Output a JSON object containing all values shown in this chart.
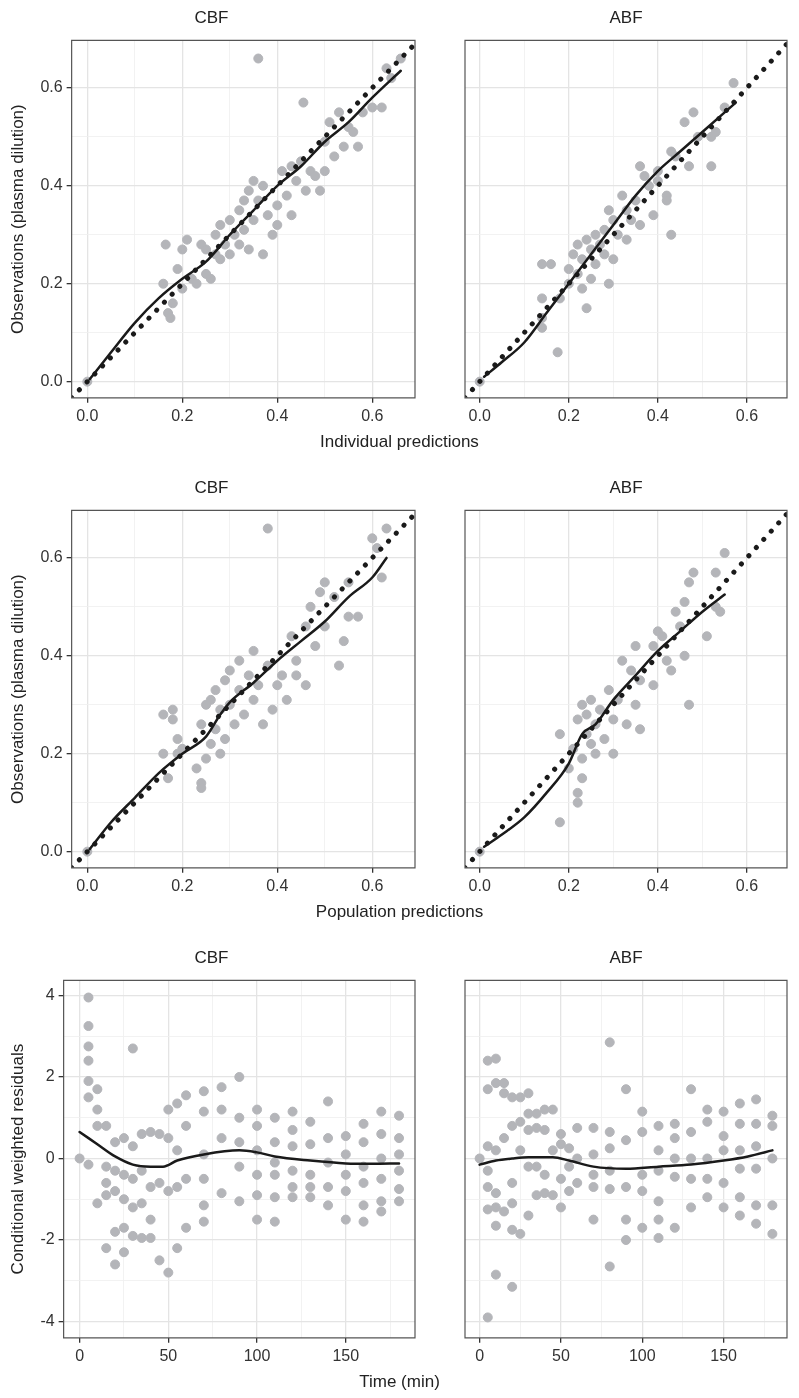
{
  "chart_data": [
    {
      "type": "scatter",
      "title": "CBF",
      "xlabel": "Individual predictions",
      "ylabel": "Observations (plasma dilution)",
      "xlim": [
        -0.033,
        0.69
      ],
      "ylim": [
        -0.033,
        0.697
      ],
      "xticks": [
        {
          "value": 0,
          "label": "0.0"
        },
        {
          "value": 0.1,
          "label": null
        },
        {
          "value": 0.2,
          "label": "0.2"
        },
        {
          "value": 0.3,
          "label": null
        },
        {
          "value": 0.4,
          "label": "0.4"
        },
        {
          "value": 0.5,
          "label": null
        },
        {
          "value": 0.6,
          "label": "0.6"
        }
      ],
      "yticks": [
        {
          "value": 0,
          "label": "0.0"
        },
        {
          "value": 0.1,
          "label": null
        },
        {
          "value": 0.2,
          "label": "0.2"
        },
        {
          "value": 0.3,
          "label": null
        },
        {
          "value": 0.4,
          "label": "0.4"
        },
        {
          "value": 0.5,
          "label": null
        },
        {
          "value": 0.6,
          "label": "0.6"
        }
      ],
      "grid": true,
      "series": [
        {
          "color": "#b4b5b9",
          "marker": "circle",
          "x": [
            0,
            0.16,
            0.165,
            0.17,
            0.175,
            0.18,
            0.19,
            0.2,
            0.2,
            0.21,
            0.22,
            0.23,
            0.24,
            0.25,
            0.25,
            0.26,
            0.27,
            0.27,
            0.28,
            0.28,
            0.29,
            0.3,
            0.3,
            0.31,
            0.32,
            0.32,
            0.33,
            0.33,
            0.34,
            0.34,
            0.35,
            0.35,
            0.36,
            0.36,
            0.37,
            0.37,
            0.38,
            0.39,
            0.4,
            0.4,
            0.41,
            0.42,
            0.43,
            0.43,
            0.44,
            0.45,
            0.455,
            0.46,
            0.47,
            0.48,
            0.49,
            0.5,
            0.5,
            0.51,
            0.52,
            0.53,
            0.54,
            0.55,
            0.56,
            0.57,
            0.58,
            0.6,
            0.62,
            0.63,
            0.64,
            0.66
          ],
          "values": [
            0,
            0.2,
            0.28,
            0.14,
            0.13,
            0.16,
            0.23,
            0.27,
            0.19,
            0.29,
            0.21,
            0.2,
            0.28,
            0.22,
            0.27,
            0.21,
            0.26,
            0.3,
            0.25,
            0.32,
            0.28,
            0.33,
            0.26,
            0.3,
            0.35,
            0.28,
            0.37,
            0.31,
            0.39,
            0.27,
            0.33,
            0.41,
            0.66,
            0.37,
            0.4,
            0.26,
            0.34,
            0.3,
            0.32,
            0.36,
            0.43,
            0.38,
            0.44,
            0.34,
            0.41,
            0.45,
            0.57,
            0.39,
            0.43,
            0.42,
            0.39,
            0.43,
            0.49,
            0.53,
            0.46,
            0.55,
            0.48,
            0.52,
            0.51,
            0.48,
            0.55,
            0.56,
            0.56,
            0.64,
            0.62,
            0.66
          ]
        },
        {
          "type": "line",
          "color": "#1a1a1a",
          "marker": "none",
          "line_style": "solid",
          "x": [
            0.005,
            0.05,
            0.1,
            0.15,
            0.2,
            0.25,
            0.3,
            0.35,
            0.4,
            0.45,
            0.5,
            0.55,
            0.6,
            0.66
          ],
          "values": [
            0.005,
            0.06,
            0.12,
            0.17,
            0.21,
            0.245,
            0.3,
            0.35,
            0.4,
            0.44,
            0.49,
            0.53,
            0.58,
            0.635
          ]
        },
        {
          "type": "line",
          "color": "#1a1a1a",
          "marker": "none",
          "line_style": "dotted",
          "x": [
            -0.033,
            0.69
          ],
          "values": [
            -0.033,
            0.69
          ]
        }
      ]
    },
    {
      "type": "scatter",
      "title": "ABF",
      "xlim": [
        -0.033,
        0.69
      ],
      "ylim": [
        -0.033,
        0.697
      ],
      "xticks": [
        {
          "value": 0,
          "label": "0.0"
        },
        {
          "value": 0.1,
          "label": null
        },
        {
          "value": 0.2,
          "label": "0.2"
        },
        {
          "value": 0.3,
          "label": null
        },
        {
          "value": 0.4,
          "label": "0.4"
        },
        {
          "value": 0.5,
          "label": null
        },
        {
          "value": 0.6,
          "label": "0.6"
        }
      ],
      "yticks": [
        0,
        {
          "value": 0.1,
          "label": null
        },
        0.2,
        {
          "value": 0.3,
          "label": null
        },
        0.4,
        {
          "value": 0.5,
          "label": null
        },
        0.6
      ],
      "grid": true,
      "tick_labels": "x",
      "series": [
        {
          "color": "#b4b5b9",
          "marker": "circle",
          "x": [
            0,
            0.14,
            0.14,
            0.14,
            0.14,
            0.16,
            0.175,
            0.18,
            0.2,
            0.2,
            0.21,
            0.22,
            0.22,
            0.23,
            0.23,
            0.24,
            0.24,
            0.25,
            0.25,
            0.26,
            0.26,
            0.27,
            0.28,
            0.28,
            0.29,
            0.29,
            0.3,
            0.3,
            0.31,
            0.32,
            0.33,
            0.33,
            0.34,
            0.35,
            0.36,
            0.36,
            0.37,
            0.38,
            0.39,
            0.4,
            0.4,
            0.42,
            0.42,
            0.43,
            0.43,
            0.44,
            0.46,
            0.47,
            0.48,
            0.49,
            0.52,
            0.52,
            0.53,
            0.55,
            0.57
          ],
          "values": [
            0,
            0.24,
            0.13,
            0.11,
            0.17,
            0.24,
            0.06,
            0.17,
            0.23,
            0.2,
            0.26,
            0.22,
            0.28,
            0.25,
            0.19,
            0.29,
            0.15,
            0.27,
            0.21,
            0.3,
            0.24,
            0.28,
            0.26,
            0.31,
            0.2,
            0.35,
            0.25,
            0.33,
            0.3,
            0.38,
            0.29,
            0.35,
            0.33,
            0.37,
            0.32,
            0.44,
            0.42,
            0.4,
            0.34,
            0.43,
            0.41,
            0.38,
            0.37,
            0.3,
            0.47,
            0.46,
            0.53,
            0.44,
            0.55,
            0.5,
            0.5,
            0.44,
            0.51,
            0.56,
            0.61
          ]
        },
        {
          "type": "line",
          "color": "#1a1a1a",
          "marker": "none",
          "line_style": "solid",
          "x": [
            0.01,
            0.05,
            0.1,
            0.15,
            0.2,
            0.25,
            0.3,
            0.35,
            0.4,
            0.45,
            0.5,
            0.55,
            0.575
          ],
          "values": [
            0.01,
            0.04,
            0.08,
            0.14,
            0.2,
            0.26,
            0.32,
            0.38,
            0.43,
            0.47,
            0.51,
            0.55,
            0.57
          ]
        },
        {
          "type": "line",
          "color": "#1a1a1a",
          "marker": "none",
          "line_style": "dotted",
          "x": [
            -0.033,
            0.69
          ],
          "values": [
            -0.033,
            0.69
          ]
        }
      ]
    },
    {
      "type": "scatter",
      "title": "CBF",
      "xlabel": "Population predictions",
      "ylabel": "Observations (plasma dilution)",
      "xlim": [
        -0.033,
        0.69
      ],
      "ylim": [
        -0.033,
        0.697
      ],
      "xticks": [
        {
          "value": 0,
          "label": "0.0"
        },
        {
          "value": 0.1,
          "label": null
        },
        {
          "value": 0.2,
          "label": "0.2"
        },
        {
          "value": 0.3,
          "label": null
        },
        {
          "value": 0.4,
          "label": "0.4"
        },
        {
          "value": 0.5,
          "label": null
        },
        {
          "value": 0.6,
          "label": "0.6"
        }
      ],
      "yticks": [
        {
          "value": 0,
          "label": "0.0"
        },
        {
          "value": 0.1,
          "label": null
        },
        {
          "value": 0.2,
          "label": "0.2"
        },
        {
          "value": 0.3,
          "label": null
        },
        {
          "value": 0.4,
          "label": "0.4"
        },
        {
          "value": 0.5,
          "label": null
        },
        {
          "value": 0.6,
          "label": "0.6"
        }
      ],
      "grid": true,
      "series": [
        {
          "color": "#b4b5b9",
          "marker": "circle",
          "x": [
            0,
            0.16,
            0.16,
            0.17,
            0.18,
            0.18,
            0.19,
            0.19,
            0.2,
            0.23,
            0.24,
            0.24,
            0.24,
            0.25,
            0.25,
            0.26,
            0.26,
            0.27,
            0.27,
            0.28,
            0.28,
            0.29,
            0.29,
            0.3,
            0.3,
            0.31,
            0.32,
            0.32,
            0.33,
            0.34,
            0.35,
            0.35,
            0.36,
            0.37,
            0.38,
            0.38,
            0.39,
            0.4,
            0.41,
            0.42,
            0.43,
            0.44,
            0.44,
            0.46,
            0.46,
            0.47,
            0.48,
            0.49,
            0.5,
            0.5,
            0.52,
            0.53,
            0.54,
            0.55,
            0.55,
            0.57,
            0.6,
            0.61,
            0.62,
            0.63
          ],
          "values": [
            0,
            0.28,
            0.2,
            0.15,
            0.29,
            0.27,
            0.23,
            0.2,
            0.21,
            0.17,
            0.14,
            0.13,
            0.26,
            0.3,
            0.19,
            0.22,
            0.31,
            0.25,
            0.33,
            0.29,
            0.2,
            0.35,
            0.23,
            0.3,
            0.37,
            0.26,
            0.33,
            0.39,
            0.28,
            0.36,
            0.31,
            0.41,
            0.34,
            0.26,
            0.66,
            0.38,
            0.29,
            0.34,
            0.36,
            0.31,
            0.44,
            0.36,
            0.39,
            0.34,
            0.46,
            0.5,
            0.42,
            0.53,
            0.46,
            0.55,
            0.52,
            0.38,
            0.43,
            0.55,
            0.48,
            0.48,
            0.64,
            0.62,
            0.56,
            0.66
          ]
        },
        {
          "type": "line",
          "color": "#1a1a1a",
          "marker": "none",
          "line_style": "solid",
          "x": [
            0.005,
            0.05,
            0.1,
            0.15,
            0.2,
            0.25,
            0.28,
            0.3,
            0.35,
            0.4,
            0.45,
            0.5,
            0.55,
            0.6,
            0.63
          ],
          "values": [
            0.005,
            0.06,
            0.11,
            0.16,
            0.2,
            0.235,
            0.28,
            0.305,
            0.345,
            0.39,
            0.43,
            0.47,
            0.52,
            0.56,
            0.6
          ]
        },
        {
          "type": "line",
          "color": "#1a1a1a",
          "marker": "none",
          "line_style": "dotted",
          "x": [
            -0.033,
            0.69
          ],
          "values": [
            -0.033,
            0.69
          ]
        }
      ]
    },
    {
      "type": "scatter",
      "title": "ABF",
      "xlim": [
        -0.033,
        0.69
      ],
      "ylim": [
        -0.033,
        0.697
      ],
      "xticks": [
        {
          "value": 0,
          "label": "0.0"
        },
        {
          "value": 0.1,
          "label": null
        },
        {
          "value": 0.2,
          "label": "0.2"
        },
        {
          "value": 0.3,
          "label": null
        },
        {
          "value": 0.4,
          "label": "0.4"
        },
        {
          "value": 0.5,
          "label": null
        },
        {
          "value": 0.6,
          "label": "0.6"
        }
      ],
      "yticks": [
        0,
        {
          "value": 0.1,
          "label": null
        },
        0.2,
        {
          "value": 0.3,
          "label": null
        },
        0.4,
        {
          "value": 0.5,
          "label": null
        },
        0.6
      ],
      "grid": true,
      "tick_labels": "x",
      "series": [
        {
          "color": "#b4b5b9",
          "marker": "circle",
          "x": [
            0,
            0.18,
            0.18,
            0.2,
            0.21,
            0.22,
            0.22,
            0.22,
            0.23,
            0.23,
            0.23,
            0.24,
            0.24,
            0.25,
            0.25,
            0.26,
            0.26,
            0.27,
            0.28,
            0.29,
            0.3,
            0.3,
            0.31,
            0.32,
            0.33,
            0.34,
            0.35,
            0.35,
            0.36,
            0.36,
            0.39,
            0.39,
            0.4,
            0.41,
            0.42,
            0.43,
            0.44,
            0.45,
            0.46,
            0.46,
            0.47,
            0.47,
            0.48,
            0.51,
            0.53,
            0.53,
            0.54,
            0.55
          ],
          "values": [
            0,
            0.24,
            0.06,
            0.17,
            0.21,
            0.1,
            0.12,
            0.27,
            0.3,
            0.19,
            0.15,
            0.24,
            0.28,
            0.22,
            0.31,
            0.26,
            0.2,
            0.29,
            0.23,
            0.33,
            0.27,
            0.2,
            0.31,
            0.39,
            0.26,
            0.37,
            0.3,
            0.42,
            0.35,
            0.25,
            0.34,
            0.42,
            0.45,
            0.44,
            0.39,
            0.37,
            0.49,
            0.46,
            0.4,
            0.51,
            0.3,
            0.55,
            0.57,
            0.44,
            0.5,
            0.57,
            0.49,
            0.61
          ]
        },
        {
          "type": "line",
          "color": "#1a1a1a",
          "marker": "none",
          "line_style": "solid",
          "x": [
            0.01,
            0.05,
            0.1,
            0.15,
            0.2,
            0.23,
            0.26,
            0.3,
            0.35,
            0.4,
            0.45,
            0.5,
            0.55
          ],
          "values": [
            0.01,
            0.035,
            0.07,
            0.12,
            0.18,
            0.24,
            0.26,
            0.31,
            0.36,
            0.41,
            0.45,
            0.49,
            0.525
          ]
        },
        {
          "type": "line",
          "color": "#1a1a1a",
          "marker": "none",
          "line_style": "dotted",
          "x": [
            -0.033,
            0.69
          ],
          "values": [
            -0.033,
            0.69
          ]
        }
      ]
    },
    {
      "type": "scatter",
      "title": "CBF",
      "xlabel": "Time (min)",
      "ylabel": "Conditional weighted residuals",
      "xlim": [
        -9,
        189
      ],
      "ylim": [
        -4.4,
        4.37
      ],
      "xticks": [
        0,
        {
          "value": 25,
          "label": null
        },
        50,
        {
          "value": 75,
          "label": null
        },
        100,
        {
          "value": 125,
          "label": null
        },
        150,
        {
          "value": 175,
          "label": null
        }
      ],
      "yticks": [
        -4,
        {
          "value": -3,
          "label": null
        },
        -2,
        {
          "value": -1,
          "label": null
        },
        0,
        {
          "value": 1,
          "label": null
        },
        2,
        {
          "value": 3,
          "label": null
        },
        4
      ],
      "grid": true,
      "series": [
        {
          "color": "#b4b5b9",
          "marker": "circle",
          "x": [
            0,
            5,
            5,
            5,
            5,
            5,
            5,
            5,
            10,
            10,
            10,
            10,
            15,
            15,
            15,
            15,
            15,
            20,
            20,
            20,
            20,
            20,
            25,
            25,
            25,
            25,
            25,
            30,
            30,
            30,
            30,
            30,
            35,
            35,
            35,
            35,
            40,
            40,
            40,
            40,
            45,
            45,
            45,
            50,
            50,
            50,
            50,
            55,
            55,
            55,
            55,
            60,
            60,
            60,
            60,
            70,
            70,
            70,
            70,
            70,
            70,
            80,
            80,
            80,
            80,
            90,
            90,
            90,
            90,
            90,
            100,
            100,
            100,
            100,
            100,
            100,
            110,
            110,
            110,
            110,
            110,
            110,
            120,
            120,
            120,
            120,
            120,
            120,
            130,
            130,
            130,
            130,
            130,
            140,
            140,
            140,
            140,
            140,
            150,
            150,
            150,
            150,
            150,
            160,
            160,
            160,
            160,
            160,
            160,
            170,
            170,
            170,
            170,
            170,
            170,
            180,
            180,
            180,
            180,
            180,
            180
          ],
          "values": [
            0,
            3.95,
            3.25,
            2.75,
            2.4,
            1.9,
            1.5,
            -0.15,
            1.7,
            1.2,
            0.8,
            -1.1,
            0.8,
            -0.2,
            -0.6,
            -0.9,
            -2.2,
            0.4,
            -0.3,
            -0.8,
            -1.8,
            -2.6,
            0.5,
            -0.4,
            -1.0,
            -1.7,
            -2.3,
            2.7,
            0.3,
            -0.5,
            -1.2,
            -1.9,
            0.6,
            -0.3,
            -1.1,
            -1.95,
            0.65,
            -0.7,
            -1.5,
            -1.95,
            0.6,
            -0.6,
            -2.5,
            1.2,
            0.5,
            -0.8,
            -2.8,
            1.35,
            0.2,
            -0.7,
            -2.2,
            1.55,
            0.8,
            -0.5,
            -1.7,
            1.65,
            1.15,
            0.1,
            -0.5,
            -1.15,
            -1.55,
            1.75,
            1.2,
            0.5,
            -0.85,
            2.0,
            1.0,
            0.4,
            -0.2,
            -1.05,
            1.2,
            0.8,
            0.2,
            -0.4,
            -0.9,
            -1.5,
            1.0,
            0.4,
            -0.1,
            -0.4,
            -0.95,
            -1.55,
            1.15,
            0.7,
            0.3,
            -0.3,
            -0.7,
            -0.95,
            0.9,
            0.35,
            -0.4,
            -0.7,
            -0.95,
            1.4,
            0.5,
            -0.1,
            -0.7,
            -1.15,
            0.55,
            0.1,
            -0.4,
            -0.8,
            -1.5,
            0.85,
            0.4,
            -0.2,
            -0.6,
            -1.15,
            -1.55,
            1.15,
            0.6,
            0.0,
            -0.5,
            -1.05,
            -1.3,
            1.05,
            0.5,
            0.1,
            -0.3,
            -0.75,
            -1.05
          ]
        },
        {
          "type": "line",
          "color": "#1a1a1a",
          "marker": "none",
          "line_style": "solid",
          "x": [
            0,
            10,
            20,
            30,
            40,
            47,
            55,
            70,
            90,
            100,
            110,
            130,
            150,
            165,
            180
          ],
          "values": [
            0.65,
            0.35,
            0.05,
            -0.15,
            -0.2,
            -0.2,
            -0.05,
            0.1,
            0.2,
            0.15,
            0.05,
            -0.05,
            -0.12,
            -0.13,
            -0.12
          ]
        }
      ]
    },
    {
      "type": "scatter",
      "title": "ABF",
      "xlim": [
        -9,
        189
      ],
      "ylim": [
        -4.4,
        4.37
      ],
      "xticks": [
        0,
        {
          "value": 25,
          "label": null
        },
        50,
        {
          "value": 75,
          "label": null
        },
        100,
        {
          "value": 125,
          "label": null
        },
        150,
        {
          "value": 175,
          "label": null
        }
      ],
      "yticks": [
        -4,
        {
          "value": -3,
          "label": null
        },
        -2,
        {
          "value": -1,
          "label": null
        },
        0,
        {
          "value": 1,
          "label": null
        },
        2,
        {
          "value": 3,
          "label": null
        },
        4
      ],
      "grid": true,
      "tick_labels": "x",
      "series": [
        {
          "color": "#b4b5b9",
          "marker": "circle",
          "x": [
            0,
            5,
            5,
            5,
            5,
            5,
            5,
            5,
            10,
            10,
            10,
            10,
            10,
            10,
            10,
            15,
            15,
            15,
            15,
            20,
            20,
            20,
            20,
            20,
            20,
            25,
            25,
            25,
            25,
            30,
            30,
            30,
            30,
            30,
            35,
            35,
            35,
            35,
            40,
            40,
            40,
            40,
            45,
            45,
            45,
            50,
            50,
            50,
            50,
            55,
            55,
            55,
            60,
            60,
            60,
            70,
            70,
            70,
            70,
            70,
            80,
            80,
            80,
            80,
            80,
            80,
            90,
            90,
            90,
            90,
            90,
            100,
            100,
            100,
            100,
            100,
            110,
            110,
            110,
            110,
            110,
            110,
            120,
            120,
            120,
            120,
            120,
            130,
            130,
            130,
            130,
            130,
            140,
            140,
            140,
            140,
            140,
            150,
            150,
            150,
            150,
            150,
            160,
            160,
            160,
            160,
            160,
            160,
            170,
            170,
            170,
            170,
            170,
            170,
            180,
            180,
            180,
            180,
            180
          ],
          "values": [
            0,
            2.4,
            1.7,
            0.3,
            -0.3,
            -0.7,
            -1.25,
            -3.9,
            2.45,
            1.85,
            0.2,
            -0.85,
            -1.2,
            -1.65,
            -2.85,
            1.85,
            1.6,
            0.5,
            -1.3,
            1.5,
            0.8,
            -0.6,
            -1.1,
            -1.75,
            -3.15,
            1.5,
            0.9,
            0.2,
            -1.85,
            1.6,
            1.1,
            0.7,
            -0.2,
            -1.4,
            1.1,
            0.75,
            -0.2,
            -0.9,
            1.2,
            0.7,
            -0.4,
            -0.85,
            1.2,
            0.2,
            -0.9,
            0.6,
            0.35,
            -0.5,
            -1.2,
            0.25,
            -0.2,
            -0.8,
            0.75,
            0.0,
            -0.6,
            0.75,
            0.1,
            -0.4,
            -0.7,
            -1.5,
            2.85,
            0.65,
            0.25,
            -0.3,
            -0.75,
            -2.65,
            1.7,
            0.45,
            -0.7,
            -1.5,
            -2.0,
            1.15,
            0.65,
            -0.4,
            -0.8,
            -1.7,
            0.8,
            0.2,
            -0.3,
            -1.05,
            -1.5,
            -1.95,
            0.85,
            0.5,
            0.0,
            -0.45,
            -1.7,
            1.7,
            0.65,
            0.0,
            -0.5,
            -1.2,
            1.2,
            0.9,
            0.0,
            -0.5,
            -0.95,
            1.15,
            0.55,
            0.2,
            -0.6,
            -1.2,
            1.35,
            0.85,
            0.2,
            -0.25,
            -0.95,
            -1.4,
            1.45,
            0.85,
            0.3,
            -0.25,
            -1.15,
            -1.6,
            1.05,
            0.8,
            0.0,
            -1.15,
            -1.85
          ]
        },
        {
          "type": "line",
          "color": "#1a1a1a",
          "marker": "none",
          "line_style": "solid",
          "x": [
            0,
            10,
            20,
            30,
            45,
            55,
            70,
            90,
            110,
            130,
            150,
            165,
            180
          ],
          "values": [
            -0.15,
            -0.05,
            0.0,
            0.03,
            0.03,
            -0.05,
            -0.2,
            -0.25,
            -0.2,
            -0.15,
            -0.05,
            0.05,
            0.2
          ]
        }
      ]
    }
  ]
}
